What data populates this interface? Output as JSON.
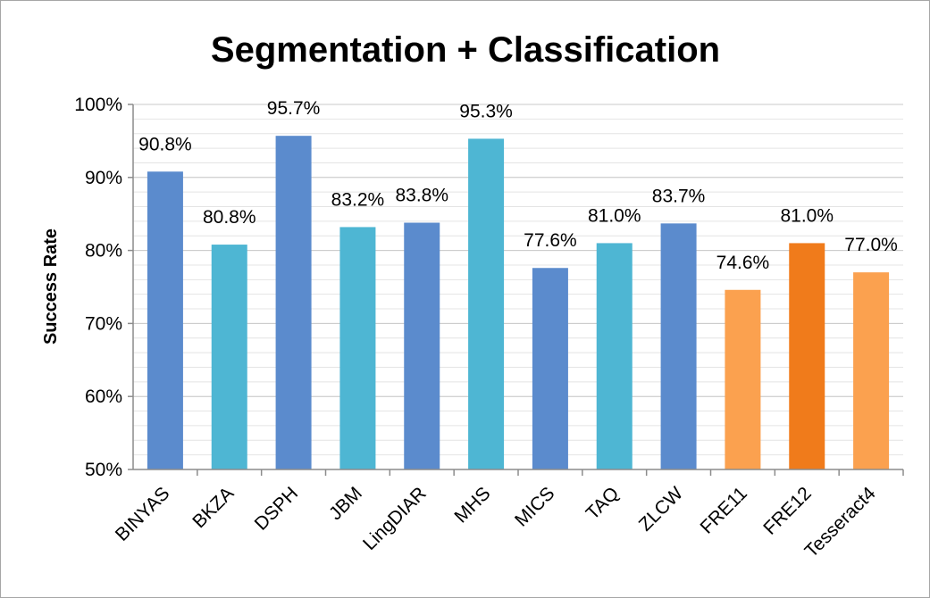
{
  "chart_data": {
    "type": "bar",
    "title": "Segmentation + Classification",
    "xlabel": "",
    "ylabel": "Success Rate",
    "ylim": [
      50,
      100
    ],
    "yticks": [
      50,
      60,
      70,
      80,
      90,
      100
    ],
    "ytick_labels": [
      "50%",
      "60%",
      "70%",
      "80%",
      "90%",
      "100%"
    ],
    "grid": true,
    "legend": "none",
    "categories": [
      "BINYAS",
      "BKZA",
      "DSPH",
      "JBM",
      "LingDIAR",
      "MHS",
      "MICS",
      "TAQ",
      "ZLCW",
      "FRE11",
      "FRE12",
      "Tesseract4"
    ],
    "values": [
      90.8,
      80.8,
      95.7,
      83.2,
      83.8,
      95.3,
      77.6,
      81.0,
      83.7,
      74.6,
      81.0,
      77.0
    ],
    "value_labels": [
      "90.8%",
      "80.8%",
      "95.7%",
      "83.2%",
      "83.8%",
      "95.3%",
      "77.6%",
      "81.0%",
      "83.7%",
      "74.6%",
      "81.0%",
      "77.0%"
    ],
    "bar_colors": [
      "#5b8bcd",
      "#4eb6d3",
      "#5b8bcd",
      "#4eb6d3",
      "#5b8bcd",
      "#4eb6d3",
      "#5b8bcd",
      "#4eb6d3",
      "#5b8bcd",
      "#fba14f",
      "#f07b1b",
      "#fba14f"
    ]
  }
}
